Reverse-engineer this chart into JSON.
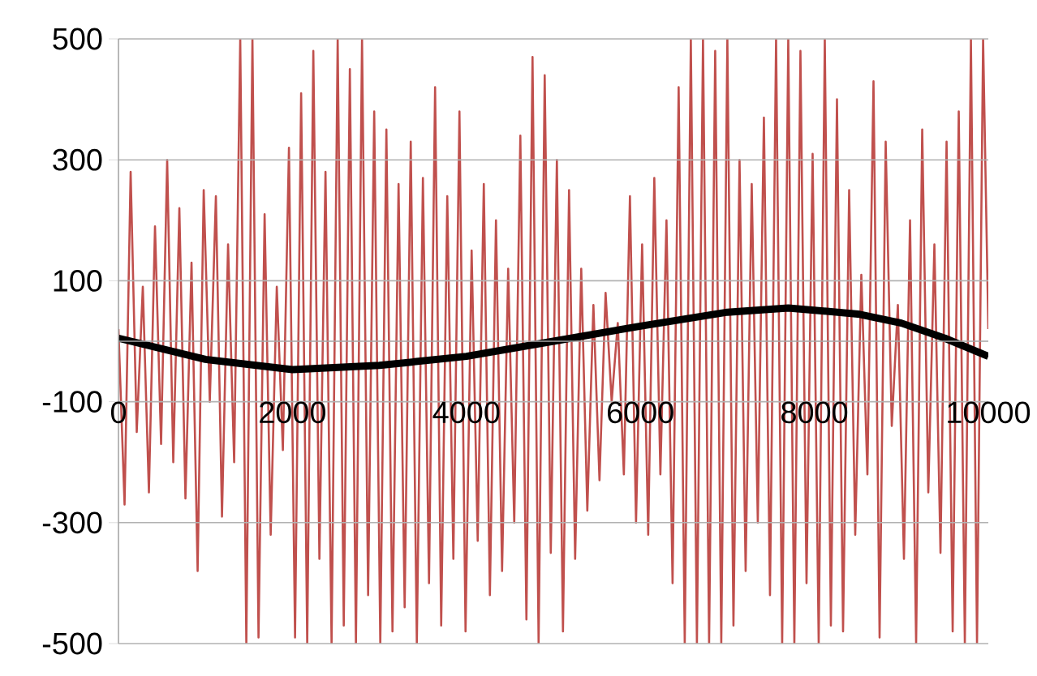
{
  "chart_data": {
    "type": "line",
    "xlim": [
      0,
      10000
    ],
    "xticks": [
      0,
      2000,
      4000,
      6000,
      8000,
      10000
    ],
    "ylim": [
      -500,
      500
    ],
    "yticks": [
      -500,
      -300,
      -100,
      100,
      300,
      500
    ],
    "grid": "y",
    "marker": "none",
    "series": [
      {
        "color": "#c0504d",
        "x": [
          0,
          70,
          140,
          210,
          280,
          350,
          420,
          490,
          560,
          630,
          700,
          770,
          840,
          910,
          980,
          1050,
          1120,
          1190,
          1260,
          1330,
          1400,
          1470,
          1540,
          1610,
          1680,
          1750,
          1820,
          1890,
          1960,
          2030,
          2100,
          2170,
          2240,
          2310,
          2380,
          2450,
          2520,
          2590,
          2660,
          2730,
          2800,
          2870,
          2940,
          3010,
          3080,
          3150,
          3220,
          3290,
          3360,
          3430,
          3500,
          3570,
          3640,
          3710,
          3780,
          3850,
          3920,
          3990,
          4060,
          4130,
          4200,
          4270,
          4340,
          4410,
          4480,
          4550,
          4620,
          4690,
          4760,
          4830,
          4900,
          4970,
          5040,
          5110,
          5180,
          5250,
          5320,
          5390,
          5460,
          5530,
          5600,
          5670,
          5740,
          5810,
          5880,
          5950,
          6020,
          6090,
          6160,
          6230,
          6300,
          6370,
          6440,
          6510,
          6580,
          6650,
          6720,
          6790,
          6860,
          6930,
          7000,
          7070,
          7140,
          7210,
          7280,
          7350,
          7420,
          7490,
          7560,
          7630,
          7700,
          7770,
          7840,
          7910,
          7980,
          8050,
          8120,
          8190,
          8260,
          8330,
          8400,
          8470,
          8540,
          8610,
          8680,
          8750,
          8820,
          8890,
          8960,
          9030,
          9100,
          9170,
          9240,
          9310,
          9380,
          9450,
          9520,
          9590,
          9660,
          9730,
          9800,
          9870,
          9940,
          10000
        ],
        "values": [
          20,
          -270,
          280,
          -150,
          90,
          -250,
          190,
          -170,
          300,
          -200,
          220,
          -260,
          130,
          -380,
          250,
          -100,
          240,
          -290,
          160,
          -200,
          500,
          -500,
          500,
          -490,
          210,
          -320,
          90,
          -180,
          320,
          -490,
          410,
          -500,
          480,
          -360,
          280,
          -500,
          500,
          -470,
          450,
          -500,
          500,
          -420,
          380,
          -500,
          350,
          -480,
          260,
          -440,
          330,
          -500,
          270,
          -400,
          420,
          -470,
          240,
          -360,
          380,
          -480,
          150,
          -330,
          260,
          -420,
          200,
          -380,
          120,
          -300,
          340,
          -460,
          470,
          -500,
          440,
          -350,
          300,
          -480,
          250,
          -360,
          120,
          -280,
          60,
          -230,
          80,
          -100,
          30,
          -220,
          240,
          -300,
          160,
          -320,
          270,
          -220,
          200,
          -400,
          420,
          -500,
          500,
          -500,
          500,
          -500,
          480,
          -500,
          500,
          -470,
          300,
          -380,
          260,
          -300,
          370,
          -420,
          500,
          -500,
          500,
          -500,
          480,
          -400,
          310,
          -500,
          500,
          -470,
          400,
          -480,
          250,
          -320,
          110,
          -220,
          430,
          -490,
          330,
          -140,
          60,
          -360,
          200,
          -500,
          350,
          -250,
          160,
          -350,
          330,
          -480,
          380,
          -500,
          500,
          -500,
          500,
          20
        ]
      },
      {
        "color": "#000000",
        "x": [
          0,
          1000,
          2000,
          3000,
          4000,
          5000,
          6000,
          7000,
          7700,
          8500,
          9000,
          9500,
          10000
        ],
        "values": [
          5,
          -30,
          -47,
          -40,
          -25,
          0,
          25,
          48,
          55,
          45,
          30,
          5,
          -25
        ]
      }
    ]
  }
}
